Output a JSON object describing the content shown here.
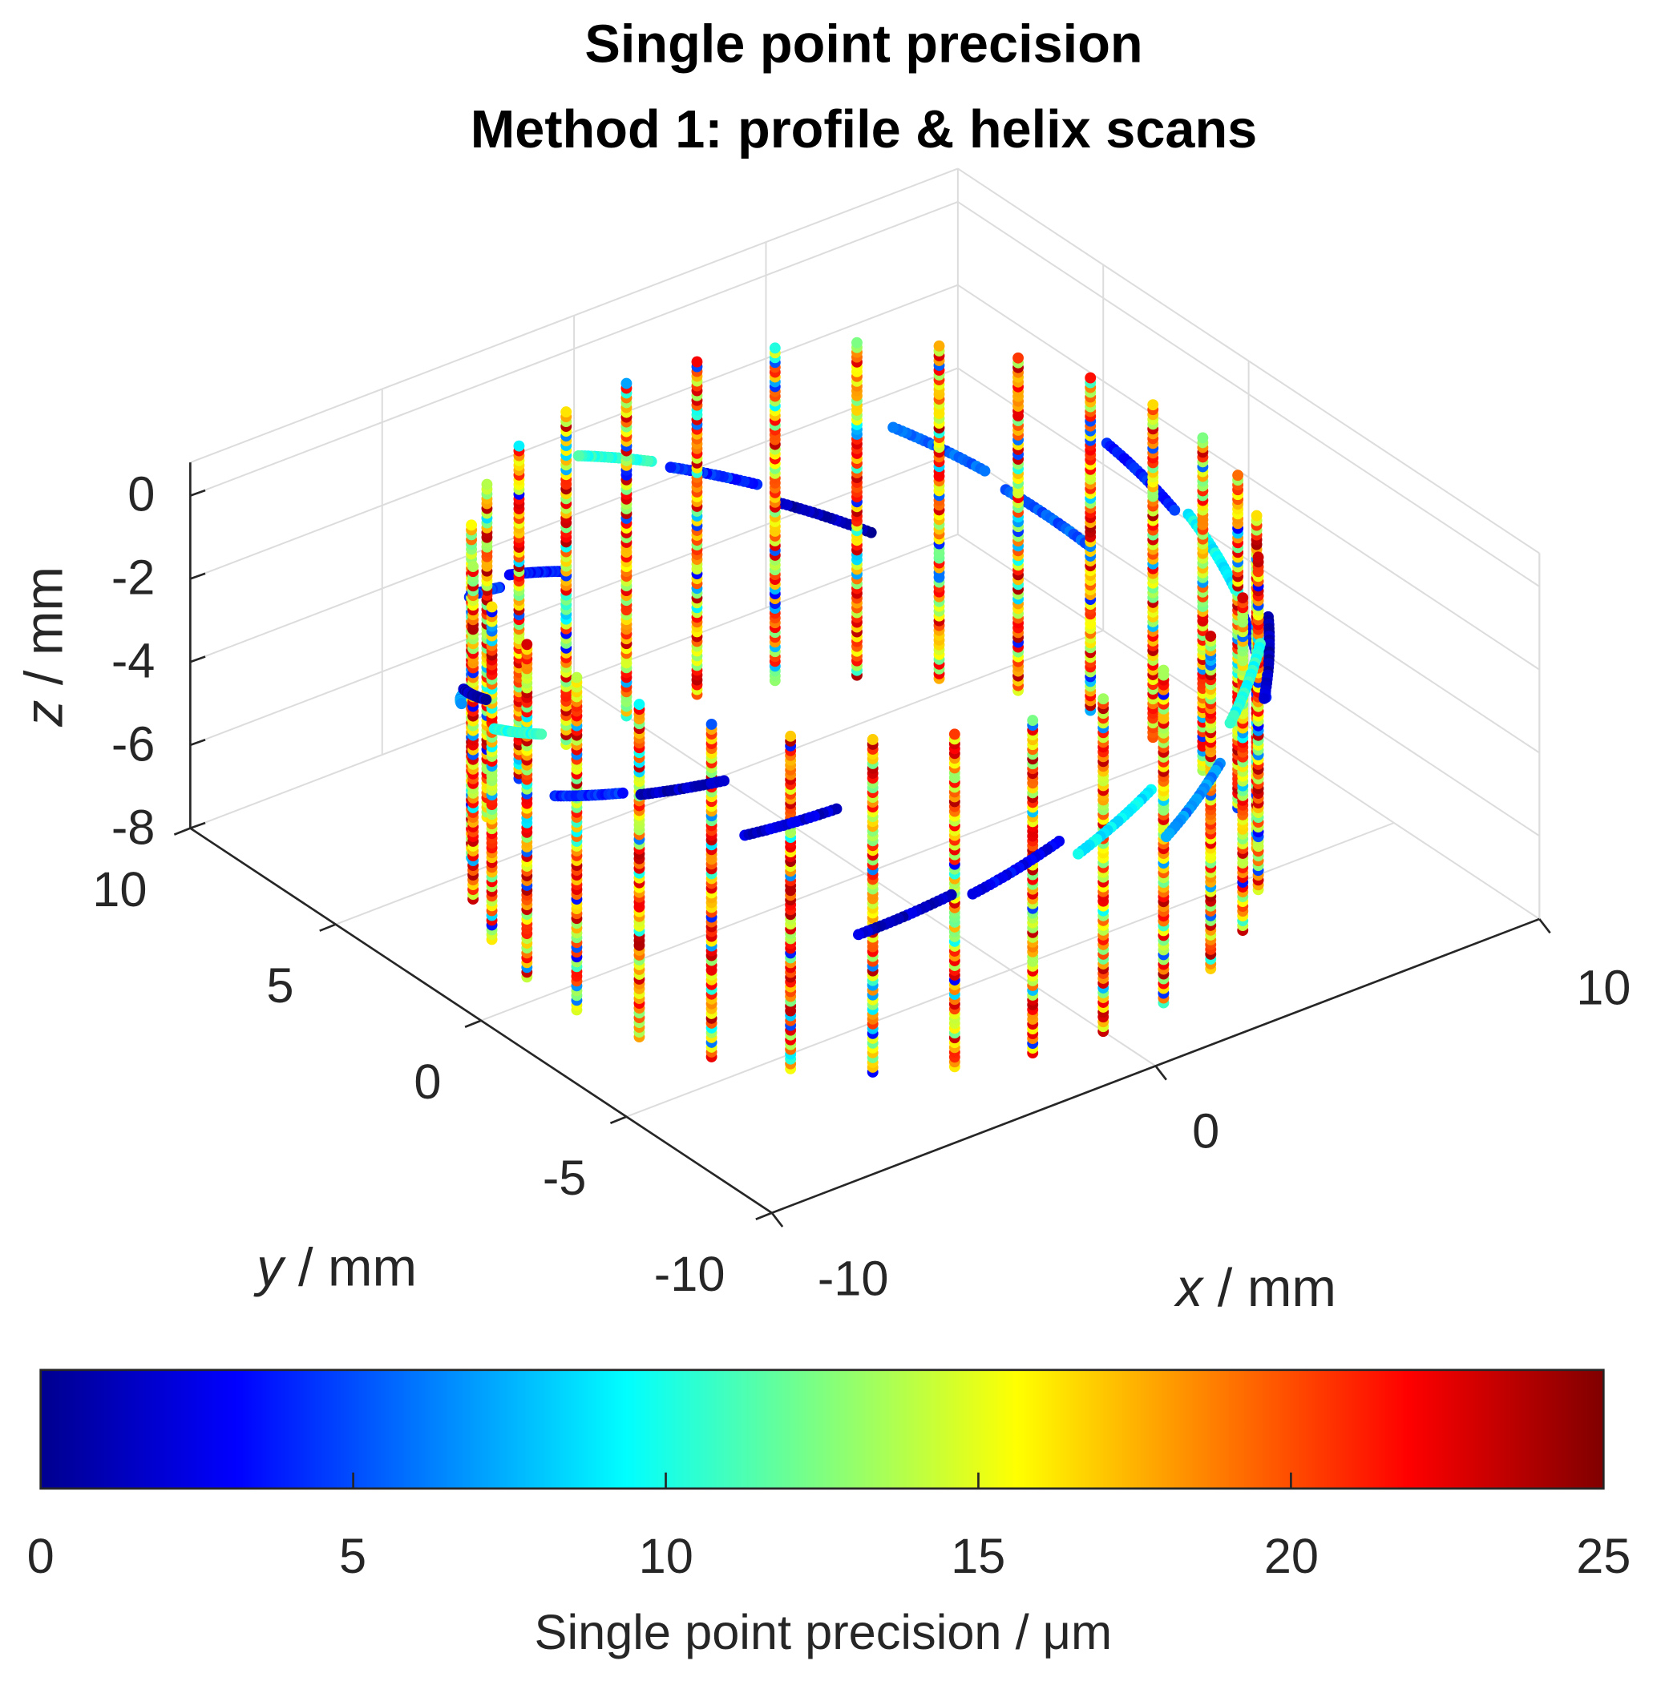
{
  "title": {
    "line1": "Single point precision",
    "line2": "Method 1: profile & helix scans"
  },
  "chart_data": {
    "type": "scatter3d",
    "title": "Single point precision — Method 1: profile & helix scans",
    "xlabel_var": "x",
    "xlabel_unit": " / mm",
    "ylabel_var": "y",
    "ylabel_unit": " / mm",
    "zlabel_var": "z",
    "zlabel_unit": " / mm",
    "xlim": [
      -10,
      10
    ],
    "ylim": [
      -10,
      10
    ],
    "zlim": [
      -8,
      0.8
    ],
    "xticks": [
      "-10",
      "0",
      "10"
    ],
    "yticks": [
      "10",
      "5",
      "0",
      "-5",
      "-10"
    ],
    "zticks": [
      "0",
      "-2",
      "-4",
      "-6",
      "-8"
    ],
    "profile_scans": {
      "count": 30,
      "radius_mm": 8.2,
      "z_range_mm": [
        -8,
        0
      ],
      "points_per_scan": 70,
      "typical_precision_um": [
        12,
        24
      ]
    },
    "helix_scans": {
      "segments": 22,
      "radius_mm": 8.4,
      "z_center_mm": -4,
      "typical_precision_um": [
        1,
        11
      ]
    },
    "colorbar": {
      "colormap": "jet",
      "range": [
        0,
        25
      ],
      "ticks": [
        "0",
        "5",
        "10",
        "15",
        "20",
        "25"
      ],
      "label": "Single point precision / μm",
      "location": "bottom"
    }
  }
}
